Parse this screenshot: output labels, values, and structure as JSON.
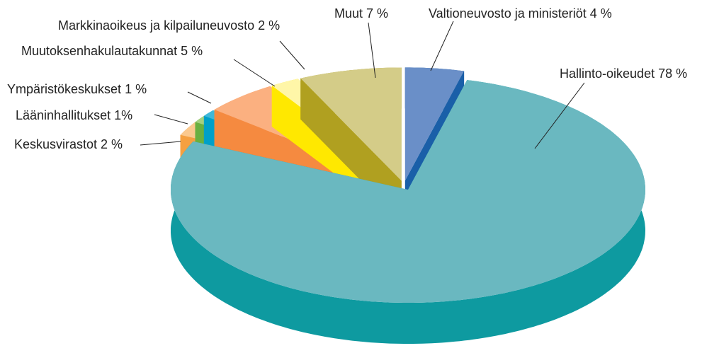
{
  "chart_data": {
    "type": "pie",
    "categories": [
      "Valtioneuvosto ja ministeriöt",
      "Hallinto-oikeudet",
      "Keskusvirastot",
      "Lääninhallitukset",
      "Ympäristökeskukset",
      "Muutoksenhakulautakunnat",
      "Markkinaoikeus ja kilpailuneuvosto",
      "Muut"
    ],
    "values": [
      4,
      78,
      2,
      1,
      1,
      5,
      2,
      7
    ],
    "value_labels": [
      "4 %",
      "78 %",
      "2 %",
      "1%",
      "1 %",
      "5 %",
      "2 %",
      "7 %"
    ],
    "colors": [
      "#6a8fc8",
      "#6ab8c0",
      "#fbc98e",
      "#a5d080",
      "#40b8d8",
      "#fbb080",
      "#fff6a8",
      "#d4cc88"
    ],
    "side_colors": [
      "#1a5fa8",
      "#0e9aa0",
      "#f5a040",
      "#6ab040",
      "#00a0c8",
      "#f58a40",
      "#ffe800",
      "#b0a020"
    ]
  }
}
